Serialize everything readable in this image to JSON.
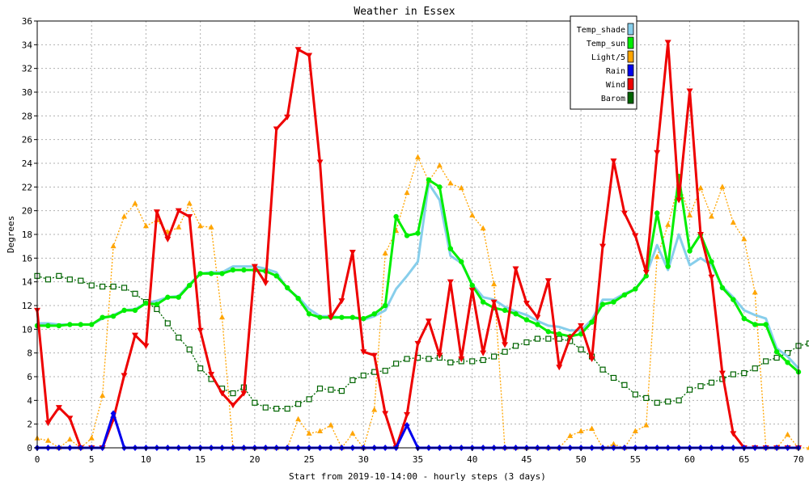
{
  "chart_data": {
    "type": "line",
    "title": "Weather in Essex",
    "xlabel": "Start from 2019-10-14:00 - hourly steps (3 days)",
    "ylabel": "Degrees",
    "xlim": [
      0,
      70
    ],
    "ylim": [
      0,
      36
    ],
    "xticks": [
      0,
      5,
      10,
      15,
      20,
      25,
      30,
      35,
      40,
      45,
      50,
      55,
      60,
      65,
      70
    ],
    "yticks": [
      0,
      2,
      4,
      6,
      8,
      10,
      12,
      14,
      16,
      18,
      20,
      22,
      24,
      26,
      28,
      30,
      32,
      34,
      36
    ],
    "grid": true,
    "legend_position": "top-right",
    "series": [
      {
        "name": "Light/5",
        "color": "#ffa500",
        "marker": "triangle-up",
        "style": "dotted",
        "values": [
          0.8,
          0.6,
          0,
          0.7,
          0,
          0.8,
          4.4,
          17,
          19.5,
          20.6,
          18.7,
          19.2,
          18.2,
          18.6,
          20.6,
          18.7,
          18.6,
          11,
          0,
          0,
          0,
          0,
          0,
          0,
          2.4,
          1.2,
          1.4,
          1.9,
          0,
          1.2,
          0,
          3.2,
          16.4,
          18.3,
          21.5,
          24.5,
          22.5,
          23.8,
          22.3,
          21.9,
          19.6,
          18.5,
          13.8,
          0,
          0,
          0,
          0,
          0,
          0,
          1,
          1.4,
          1.6,
          0,
          0.3,
          0,
          1.4,
          1.9,
          16.1,
          18.8,
          22.3,
          19.6,
          21.9,
          19.5,
          22,
          19,
          17.6,
          13.1,
          0,
          0,
          1.1,
          0,
          0
        ]
      },
      {
        "name": "Barom",
        "color": "#006400",
        "marker": "square",
        "style": "dotted",
        "values": [
          14.5,
          14.2,
          14.5,
          14.2,
          14.1,
          13.7,
          13.6,
          13.6,
          13.5,
          13,
          12.3,
          11.7,
          10.5,
          9.3,
          8.3,
          6.7,
          5.8,
          5,
          4.6,
          5.1,
          3.8,
          3.4,
          3.3,
          3.3,
          3.7,
          4.1,
          5,
          4.9,
          4.8,
          5.7,
          6.1,
          6.4,
          6.5,
          7.1,
          7.5,
          7.6,
          7.5,
          7.6,
          7.2,
          7.3,
          7.3,
          7.4,
          7.7,
          8.1,
          8.6,
          8.9,
          9.2,
          9.2,
          9.2,
          9,
          8.3,
          7.7,
          6.6,
          5.9,
          5.3,
          4.5,
          4.2,
          3.8,
          3.9,
          4,
          4.9,
          5.2,
          5.5,
          5.8,
          6.2,
          6.3,
          6.7,
          7.3,
          7.6,
          8,
          8.6,
          8.8
        ]
      },
      {
        "name": "Temp_shade",
        "color": "#87ceeb",
        "marker": "none",
        "style": "solid",
        "values": [
          10.5,
          10.5,
          10.4,
          10.4,
          10.4,
          10.4,
          10.9,
          11.2,
          11.6,
          11.7,
          12.2,
          12.4,
          12.7,
          12.8,
          13.8,
          14.7,
          14.8,
          14.8,
          15.3,
          15.3,
          15.3,
          15.1,
          14.8,
          13.4,
          12.7,
          11.7,
          11.1,
          11.1,
          11,
          11,
          10.8,
          11.1,
          11.6,
          13.4,
          14.5,
          15.7,
          22.3,
          20.9,
          16.2,
          15.6,
          13.8,
          12.7,
          12.5,
          11.9,
          11.5,
          11.2,
          10.7,
          10.3,
          10.2,
          9.9,
          9.9,
          10.8,
          12.5,
          12.5,
          13,
          13.4,
          14.6,
          17.1,
          15,
          18,
          15.4,
          16,
          15.4,
          13.6,
          12.7,
          11.6,
          11.2,
          10.9,
          8.4,
          7.7,
          6.7
        ]
      },
      {
        "name": "Temp_sun",
        "color": "#00ee00",
        "marker": "circle",
        "style": "solid",
        "values": [
          10.3,
          10.3,
          10.3,
          10.4,
          10.4,
          10.4,
          11,
          11.1,
          11.6,
          11.6,
          12.2,
          12.1,
          12.7,
          12.7,
          13.7,
          14.7,
          14.7,
          14.7,
          15,
          15,
          15,
          14.9,
          14.5,
          13.5,
          12.6,
          11.3,
          11,
          11,
          11,
          11,
          10.9,
          11.3,
          12,
          19.5,
          17.9,
          18.1,
          22.6,
          22,
          16.8,
          15.7,
          13.7,
          12.3,
          11.8,
          11.6,
          11.3,
          10.8,
          10.4,
          9.8,
          9.6,
          9.4,
          9.6,
          10.6,
          12.1,
          12.3,
          12.9,
          13.4,
          14.5,
          19.8,
          15.3,
          22.9,
          16.6,
          18,
          15.7,
          13.5,
          12.5,
          10.9,
          10.4,
          10.4,
          8.1,
          7.2,
          6.4
        ]
      },
      {
        "name": "Wind",
        "color": "#ee0000",
        "marker": "triangle-down",
        "style": "solid",
        "values": [
          11.6,
          2.1,
          3.4,
          2.5,
          0,
          0,
          0,
          2.4,
          6.1,
          9.5,
          8.6,
          19.9,
          17.6,
          20,
          19.5,
          9.9,
          6.2,
          4.6,
          3.6,
          4.6,
          15.3,
          13.9,
          26.9,
          27.9,
          33.6,
          33.1,
          24.1,
          11,
          12.4,
          16.5,
          8.1,
          7.8,
          2.9,
          0,
          2.8,
          8.8,
          10.7,
          7.8,
          14,
          7.5,
          13.3,
          8,
          12.3,
          8.7,
          15.1,
          12.2,
          11,
          14.1,
          6.8,
          9.3,
          10.3,
          7.5,
          17,
          24.2,
          19.8,
          17.9,
          14.8,
          24.9,
          34.2,
          20.9,
          30.1,
          18,
          14.4,
          6.3,
          1.2,
          0,
          0,
          0,
          0,
          0,
          0
        ]
      },
      {
        "name": "Rain",
        "color": "#0000ee",
        "marker": "diamond",
        "style": "solid",
        "values": [
          0,
          0,
          0,
          0,
          0,
          0,
          0,
          2.9,
          0,
          0,
          0,
          0,
          0,
          0,
          0,
          0,
          0,
          0,
          0,
          0,
          0,
          0,
          0,
          0,
          0,
          0,
          0,
          0,
          0,
          0,
          0,
          0,
          0,
          0,
          1.9,
          0,
          0,
          0,
          0,
          0,
          0,
          0,
          0,
          0,
          0,
          0,
          0,
          0,
          0,
          0,
          0,
          0,
          0,
          0,
          0,
          0,
          0,
          0,
          0,
          0,
          0,
          0,
          0,
          0,
          0,
          0,
          0,
          0,
          0,
          0,
          0
        ]
      }
    ],
    "legend": [
      {
        "name": "Temp_shade",
        "color": "#87ceeb"
      },
      {
        "name": "Temp_sun",
        "color": "#00ee00"
      },
      {
        "name": "Light/5",
        "color": "#ffa500"
      },
      {
        "name": "Rain",
        "color": "#0000ee"
      },
      {
        "name": "Wind",
        "color": "#ee0000"
      },
      {
        "name": "Barom",
        "color": "#006400"
      }
    ]
  }
}
